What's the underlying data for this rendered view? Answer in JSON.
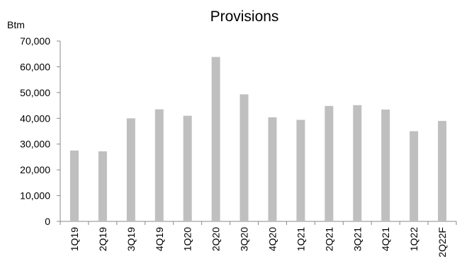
{
  "chart_data": {
    "type": "bar",
    "title": "Provisions",
    "unit_label": "Btm",
    "xlabel": "",
    "ylabel": "",
    "ylim": [
      0,
      70000
    ],
    "yticks": [
      "0",
      "10,000",
      "20,000",
      "30,000",
      "40,000",
      "50,000",
      "60,000",
      "70,000"
    ],
    "categories": [
      "1Q19",
      "2Q19",
      "3Q19",
      "4Q19",
      "1Q20",
      "2Q20",
      "3Q20",
      "4Q20",
      "1Q21",
      "2Q21",
      "3Q21",
      "4Q21",
      "1Q22",
      "2Q22F"
    ],
    "values": [
      27500,
      27200,
      40000,
      43500,
      41000,
      63800,
      49300,
      40400,
      39400,
      44800,
      45100,
      43400,
      35000,
      39000
    ],
    "bar_color": "#bfbfbf",
    "grid": false,
    "legend": "none"
  }
}
